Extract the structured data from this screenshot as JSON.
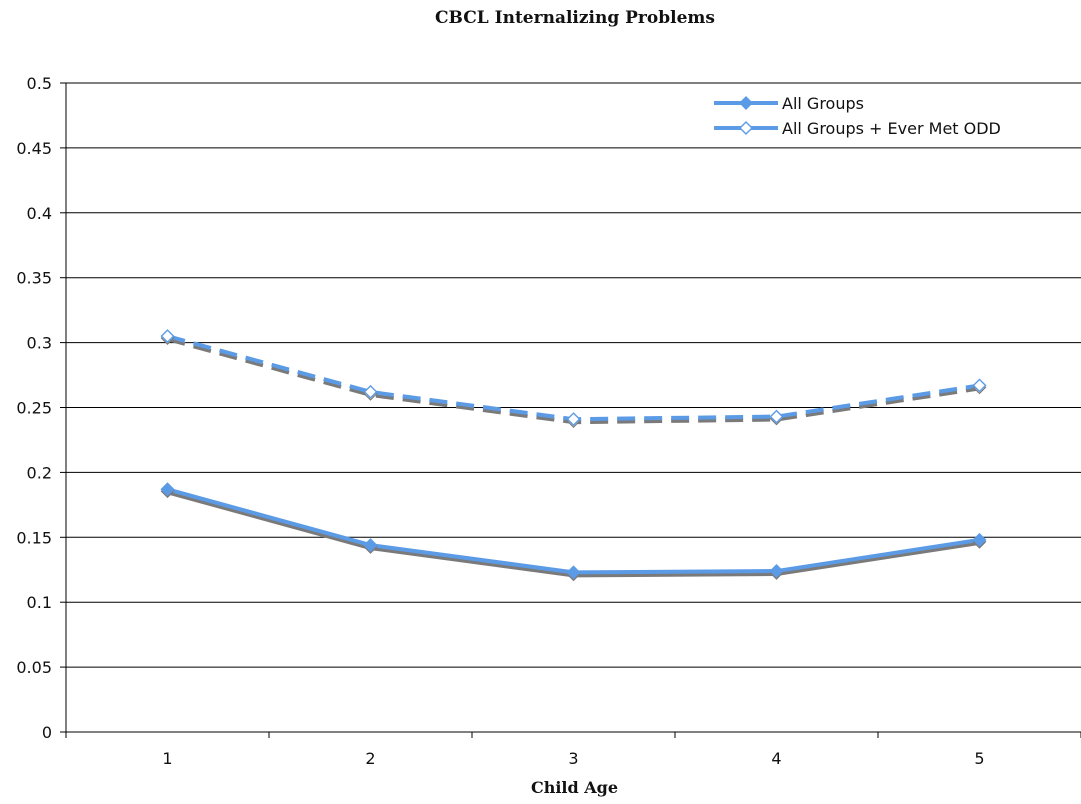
{
  "chart_data": {
    "type": "line",
    "title": "CBCL Internalizing Problems",
    "xlabel": "Child Age",
    "ylabel": "",
    "categories": [
      "1",
      "2",
      "3",
      "4",
      "5"
    ],
    "ylim": [
      0,
      0.5
    ],
    "yticks": [
      "0",
      "0.05",
      "0.1",
      "0.15",
      "0.2",
      "0.25",
      "0.3",
      "0.35",
      "0.4",
      "0.45",
      "0.5"
    ],
    "grid": true,
    "legend_position": "top-right",
    "series": [
      {
        "name": "All Groups",
        "values": [
          0.187,
          0.144,
          0.123,
          0.124,
          0.148
        ],
        "color": "#5b9be6",
        "shadow_color": "#7a7a7a",
        "marker": "filled-diamond",
        "dash": "solid"
      },
      {
        "name": "All Groups + Ever Met ODD",
        "values": [
          0.305,
          0.262,
          0.241,
          0.243,
          0.267
        ],
        "color": "#5b9be6",
        "shadow_color": "#7a7a7a",
        "marker": "open-diamond",
        "dash": "dashed"
      }
    ]
  }
}
